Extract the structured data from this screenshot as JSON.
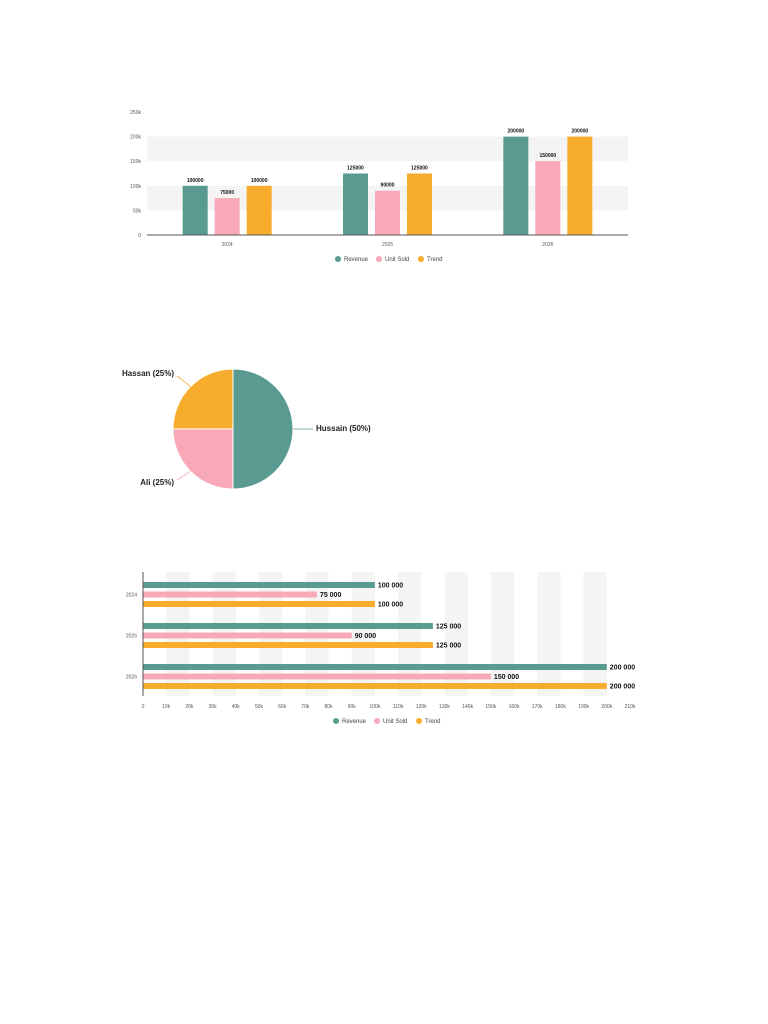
{
  "colors": {
    "revenue": "#5a9b91",
    "unit_sold": "#f9a8b8",
    "trend": "#f8ac2d",
    "axis": "#555555",
    "band": "#f4f4f4"
  },
  "chart_data": [
    {
      "type": "bar",
      "orientation": "vertical",
      "categories": [
        "2024",
        "2025",
        "2026"
      ],
      "series": [
        {
          "name": "Revenue",
          "values": [
            100000,
            125000,
            200000
          ],
          "labels": [
            "100000",
            "125000",
            "200000"
          ]
        },
        {
          "name": "Unit Sold",
          "values": [
            75000,
            90000,
            150000
          ],
          "labels": [
            "75000",
            "90000",
            "150000"
          ]
        },
        {
          "name": "Trend",
          "values": [
            100000,
            125000,
            200000
          ],
          "labels": [
            "100000",
            "125000",
            "200000"
          ]
        }
      ],
      "yticks": [
        0,
        50000,
        100000,
        150000,
        200000,
        250000
      ],
      "ytick_labels": [
        "0",
        "50k",
        "100k",
        "150k",
        "200k",
        "250k"
      ],
      "ylim": [
        0,
        250000
      ],
      "legend_position": "bottom"
    },
    {
      "type": "pie",
      "slices": [
        {
          "label": "Hussain (50%)",
          "value": 50
        },
        {
          "label": "Ali (25%)",
          "value": 25
        },
        {
          "label": "Hassan (25%)",
          "value": 25
        }
      ]
    },
    {
      "type": "bar",
      "orientation": "horizontal",
      "categories": [
        "2024",
        "2025",
        "2026"
      ],
      "series": [
        {
          "name": "Revenue",
          "values": [
            100000,
            125000,
            200000
          ],
          "labels": [
            "100 000",
            "125 000",
            "200 000"
          ]
        },
        {
          "name": "Unit Sold",
          "values": [
            75000,
            90000,
            150000
          ],
          "labels": [
            "75 000",
            "90 000",
            "150 000"
          ]
        },
        {
          "name": "Trend",
          "values": [
            100000,
            125000,
            200000
          ],
          "labels": [
            "100 000",
            "125 000",
            "200 000"
          ]
        }
      ],
      "xticks": [
        0,
        10000,
        20000,
        30000,
        40000,
        50000,
        60000,
        70000,
        80000,
        90000,
        100000,
        110000,
        120000,
        130000,
        140000,
        150000,
        160000,
        170000,
        180000,
        190000,
        200000,
        210000
      ],
      "xtick_labels": [
        "0",
        "10k",
        "20k",
        "30k",
        "40k",
        "50k",
        "60k",
        "70k",
        "80k",
        "90k",
        "100k",
        "110k",
        "120k",
        "130k",
        "140k",
        "150k",
        "160k",
        "170k",
        "180k",
        "190k",
        "200k",
        "210k"
      ],
      "xlim": [
        0,
        210000
      ],
      "legend_position": "bottom"
    }
  ]
}
